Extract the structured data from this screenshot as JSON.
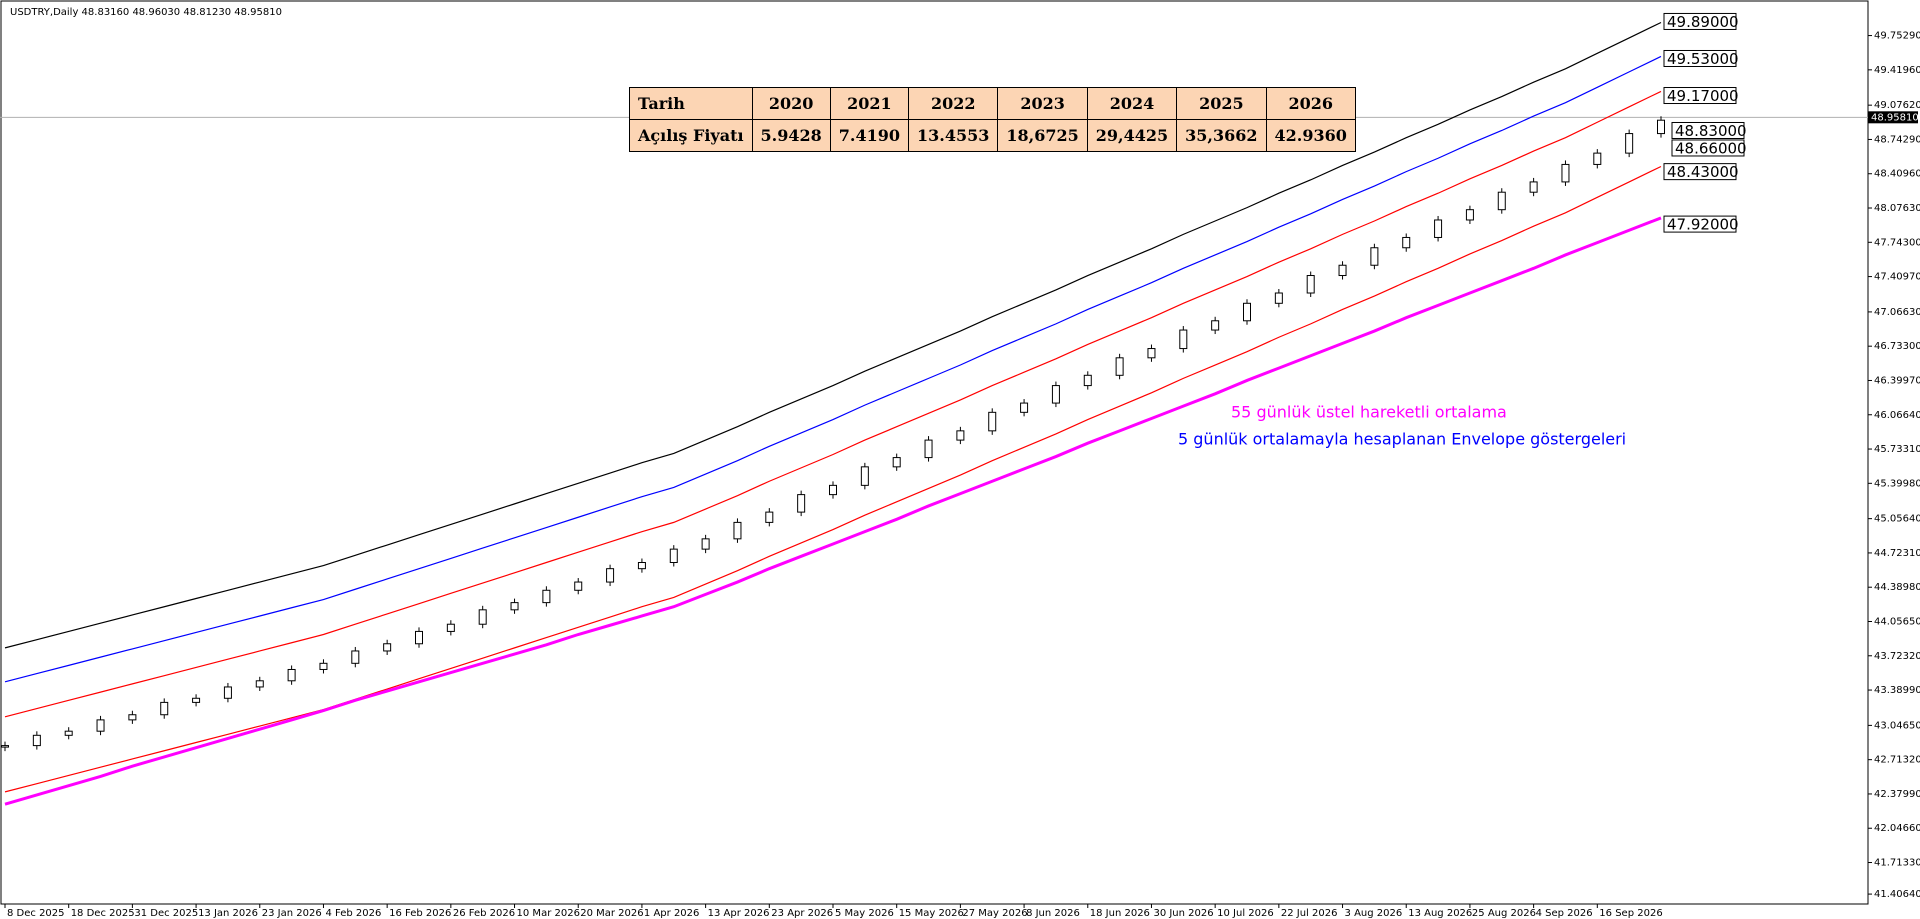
{
  "chart_data": {
    "type": "candlestick",
    "title": "USDTRY,Daily  48.83160 48.96030 48.81230 48.95810",
    "categories": [
      "8 Dec 2025",
      null,
      "18 Dec 2025",
      null,
      "31 Dec 2025",
      null,
      "13 Jan 2026",
      null,
      "23 Jan 2026",
      null,
      "4 Feb 2026",
      null,
      "16 Feb 2026",
      null,
      "26 Feb 2026",
      null,
      "10 Mar 2026",
      null,
      "20 Mar 2026",
      null,
      "1 Apr 2026",
      null,
      "13 Apr 2026",
      null,
      "23 Apr 2026",
      null,
      "5 May 2026",
      null,
      "15 May 2026",
      null,
      "27 May 2026",
      null,
      "8 Jun 2026",
      null,
      "18 Jun 2026",
      null,
      "30 Jun 2026",
      null,
      "10 Jul 2026",
      null,
      "22 Jul 2026",
      null,
      "3 Aug 2026",
      null,
      "13 Aug 2026",
      null,
      "25 Aug 2026",
      null,
      "4 Sep 2026",
      null,
      "16 Sep 2026",
      null,
      null
    ],
    "price": {
      "up_color": "#ffffff",
      "down_color": "#000000",
      "values": [
        42.85,
        42.95,
        42.99,
        43.1,
        43.15,
        43.27,
        43.31,
        43.42,
        43.48,
        43.59,
        43.65,
        43.77,
        43.84,
        43.96,
        44.03,
        44.17,
        44.24,
        44.36,
        44.44,
        44.57,
        44.63,
        44.76,
        44.86,
        45.02,
        45.12,
        45.29,
        45.38,
        45.56,
        45.65,
        45.82,
        45.91,
        46.09,
        46.18,
        46.35,
        46.45,
        46.62,
        46.71,
        46.89,
        46.98,
        47.15,
        47.25,
        47.42,
        47.52,
        47.69,
        47.79,
        47.96,
        48.06,
        48.23,
        48.33,
        48.5,
        48.61,
        48.8,
        48.93
      ]
    },
    "series": [
      {
        "color": "#000000",
        "values": [
          43.8,
          43.88,
          43.96,
          44.04,
          44.12,
          44.2,
          44.28,
          44.36,
          44.44,
          44.52,
          44.6,
          44.7,
          44.8,
          44.9,
          45.0,
          45.1,
          45.2,
          45.3,
          45.4,
          45.5,
          45.6,
          45.69,
          45.82,
          45.95,
          46.09,
          46.22,
          46.35,
          46.49,
          46.62,
          46.75,
          46.88,
          47.02,
          47.15,
          47.28,
          47.42,
          47.55,
          47.68,
          47.82,
          47.95,
          48.08,
          48.22,
          48.35,
          48.49,
          48.62,
          48.76,
          48.89,
          49.03,
          49.16,
          49.3,
          49.43,
          49.58,
          49.73,
          49.88
        ]
      },
      {
        "color": "#0000ff",
        "values": [
          43.47,
          43.55,
          43.63,
          43.71,
          43.79,
          43.87,
          43.95,
          44.03,
          44.11,
          44.19,
          44.27,
          44.37,
          44.47,
          44.57,
          44.67,
          44.77,
          44.87,
          44.97,
          45.07,
          45.17,
          45.27,
          45.36,
          45.49,
          45.62,
          45.76,
          45.89,
          46.02,
          46.16,
          46.29,
          46.42,
          46.55,
          46.69,
          46.82,
          46.95,
          47.09,
          47.22,
          47.35,
          47.49,
          47.62,
          47.75,
          47.89,
          48.02,
          48.16,
          48.29,
          48.43,
          48.56,
          48.7,
          48.83,
          48.97,
          49.1,
          49.25,
          49.4,
          49.55
        ]
      },
      {
        "color": "#ff0000",
        "values": [
          43.13,
          43.21,
          43.29,
          43.37,
          43.45,
          43.53,
          43.61,
          43.69,
          43.77,
          43.85,
          43.93,
          44.03,
          44.13,
          44.23,
          44.33,
          44.43,
          44.53,
          44.63,
          44.73,
          44.83,
          44.93,
          45.02,
          45.15,
          45.28,
          45.42,
          45.55,
          45.68,
          45.82,
          45.95,
          46.08,
          46.21,
          46.35,
          46.48,
          46.61,
          46.75,
          46.88,
          47.01,
          47.15,
          47.28,
          47.41,
          47.55,
          47.68,
          47.82,
          47.95,
          48.09,
          48.22,
          48.36,
          48.49,
          48.63,
          48.76,
          48.91,
          49.06,
          49.21
        ]
      },
      {
        "color": "#ff0000",
        "values": [
          42.4,
          42.48,
          42.56,
          42.64,
          42.72,
          42.8,
          42.88,
          42.96,
          43.04,
          43.12,
          43.2,
          43.3,
          43.4,
          43.5,
          43.6,
          43.7,
          43.8,
          43.9,
          44.0,
          44.1,
          44.2,
          44.29,
          44.42,
          44.55,
          44.69,
          44.82,
          44.95,
          45.09,
          45.22,
          45.35,
          45.48,
          45.62,
          45.75,
          45.88,
          46.02,
          46.15,
          46.28,
          46.42,
          46.55,
          46.68,
          46.82,
          46.95,
          47.09,
          47.22,
          47.36,
          47.49,
          47.63,
          47.76,
          47.9,
          48.03,
          48.18,
          48.33,
          48.48
        ]
      },
      {
        "color": "#ff00ff",
        "values": [
          42.28,
          42.37,
          42.46,
          42.55,
          42.65,
          42.74,
          42.83,
          42.92,
          43.01,
          43.1,
          43.19,
          43.29,
          43.38,
          43.47,
          43.56,
          43.65,
          43.74,
          43.83,
          43.93,
          44.02,
          44.11,
          44.2,
          44.32,
          44.44,
          44.57,
          44.69,
          44.81,
          44.93,
          45.05,
          45.18,
          45.3,
          45.42,
          45.54,
          45.66,
          45.79,
          45.91,
          46.03,
          46.15,
          46.27,
          46.4,
          46.52,
          46.64,
          46.76,
          46.88,
          47.01,
          47.13,
          47.25,
          47.37,
          47.49,
          47.62,
          47.74,
          47.86,
          47.98
        ]
      }
    ],
    "ylim": [
      41.31,
      50.05
    ],
    "yticks": [
      {
        "value": 41.4064,
        "label": "41.40640"
      },
      {
        "value": 41.7133,
        "label": "41.71330"
      },
      {
        "value": 42.0466,
        "label": "42.04660"
      },
      {
        "value": 42.3799,
        "label": "42.37990"
      },
      {
        "value": 42.7132,
        "label": "42.71320"
      },
      {
        "value": 43.0465,
        "label": "43.04650"
      },
      {
        "value": 43.3899,
        "label": "43.38990"
      },
      {
        "value": 43.7232,
        "label": "43.72320"
      },
      {
        "value": 44.0565,
        "label": "44.05650"
      },
      {
        "value": 44.3898,
        "label": "44.38980"
      },
      {
        "value": 44.7231,
        "label": "44.72310"
      },
      {
        "value": 45.0564,
        "label": "45.05640"
      },
      {
        "value": 45.3998,
        "label": "45.39980"
      },
      {
        "value": 45.7331,
        "label": "45.73310"
      },
      {
        "value": 46.0664,
        "label": "46.06640"
      },
      {
        "value": 46.3997,
        "label": "46.39970"
      },
      {
        "value": 46.733,
        "label": "46.73300"
      },
      {
        "value": 47.0663,
        "label": "47.06630"
      },
      {
        "value": 47.4097,
        "label": "47.40970"
      },
      {
        "value": 47.743,
        "label": "47.74300"
      },
      {
        "value": 48.0763,
        "label": "48.07630"
      },
      {
        "value": 48.4096,
        "label": "48.40960"
      },
      {
        "value": 48.7429,
        "label": "48.74290"
      },
      {
        "value": 49.0762,
        "label": "49.07620"
      },
      {
        "value": 49.4196,
        "label": "49.41960"
      },
      {
        "value": 49.7529,
        "label": "49.75290"
      }
    ],
    "last_price": {
      "value": 48.9581,
      "label": "48.95810"
    },
    "levels": [
      {
        "value": 49.89,
        "label": "49.89000"
      },
      {
        "value": 49.53,
        "label": "49.53000"
      },
      {
        "value": 49.17,
        "label": "49.17000"
      },
      {
        "value": 48.83,
        "label": "48.83000"
      },
      {
        "value": 48.66,
        "label": "48.66000"
      },
      {
        "value": 48.43,
        "label": "48.43000"
      },
      {
        "value": 47.92,
        "label": "47.92000"
      }
    ],
    "annotations": [
      {
        "text": "55 günlük üstel hareketli ortalama",
        "color": "#ff00ff"
      },
      {
        "text": "5 günlük ortalamayla hesaplanan Envelope göstergeleri",
        "color": "#0000ff"
      }
    ]
  },
  "table": {
    "header": [
      "Tarih",
      "2020",
      "2021",
      "2022",
      "2023",
      "2024",
      "2025",
      "2026"
    ],
    "rows": [
      [
        "Açılış Fiyatı",
        "5.9428",
        "7.4190",
        "13.4553",
        "18,6725",
        "29,4425",
        "35,3662",
        "42.9360"
      ]
    ]
  }
}
